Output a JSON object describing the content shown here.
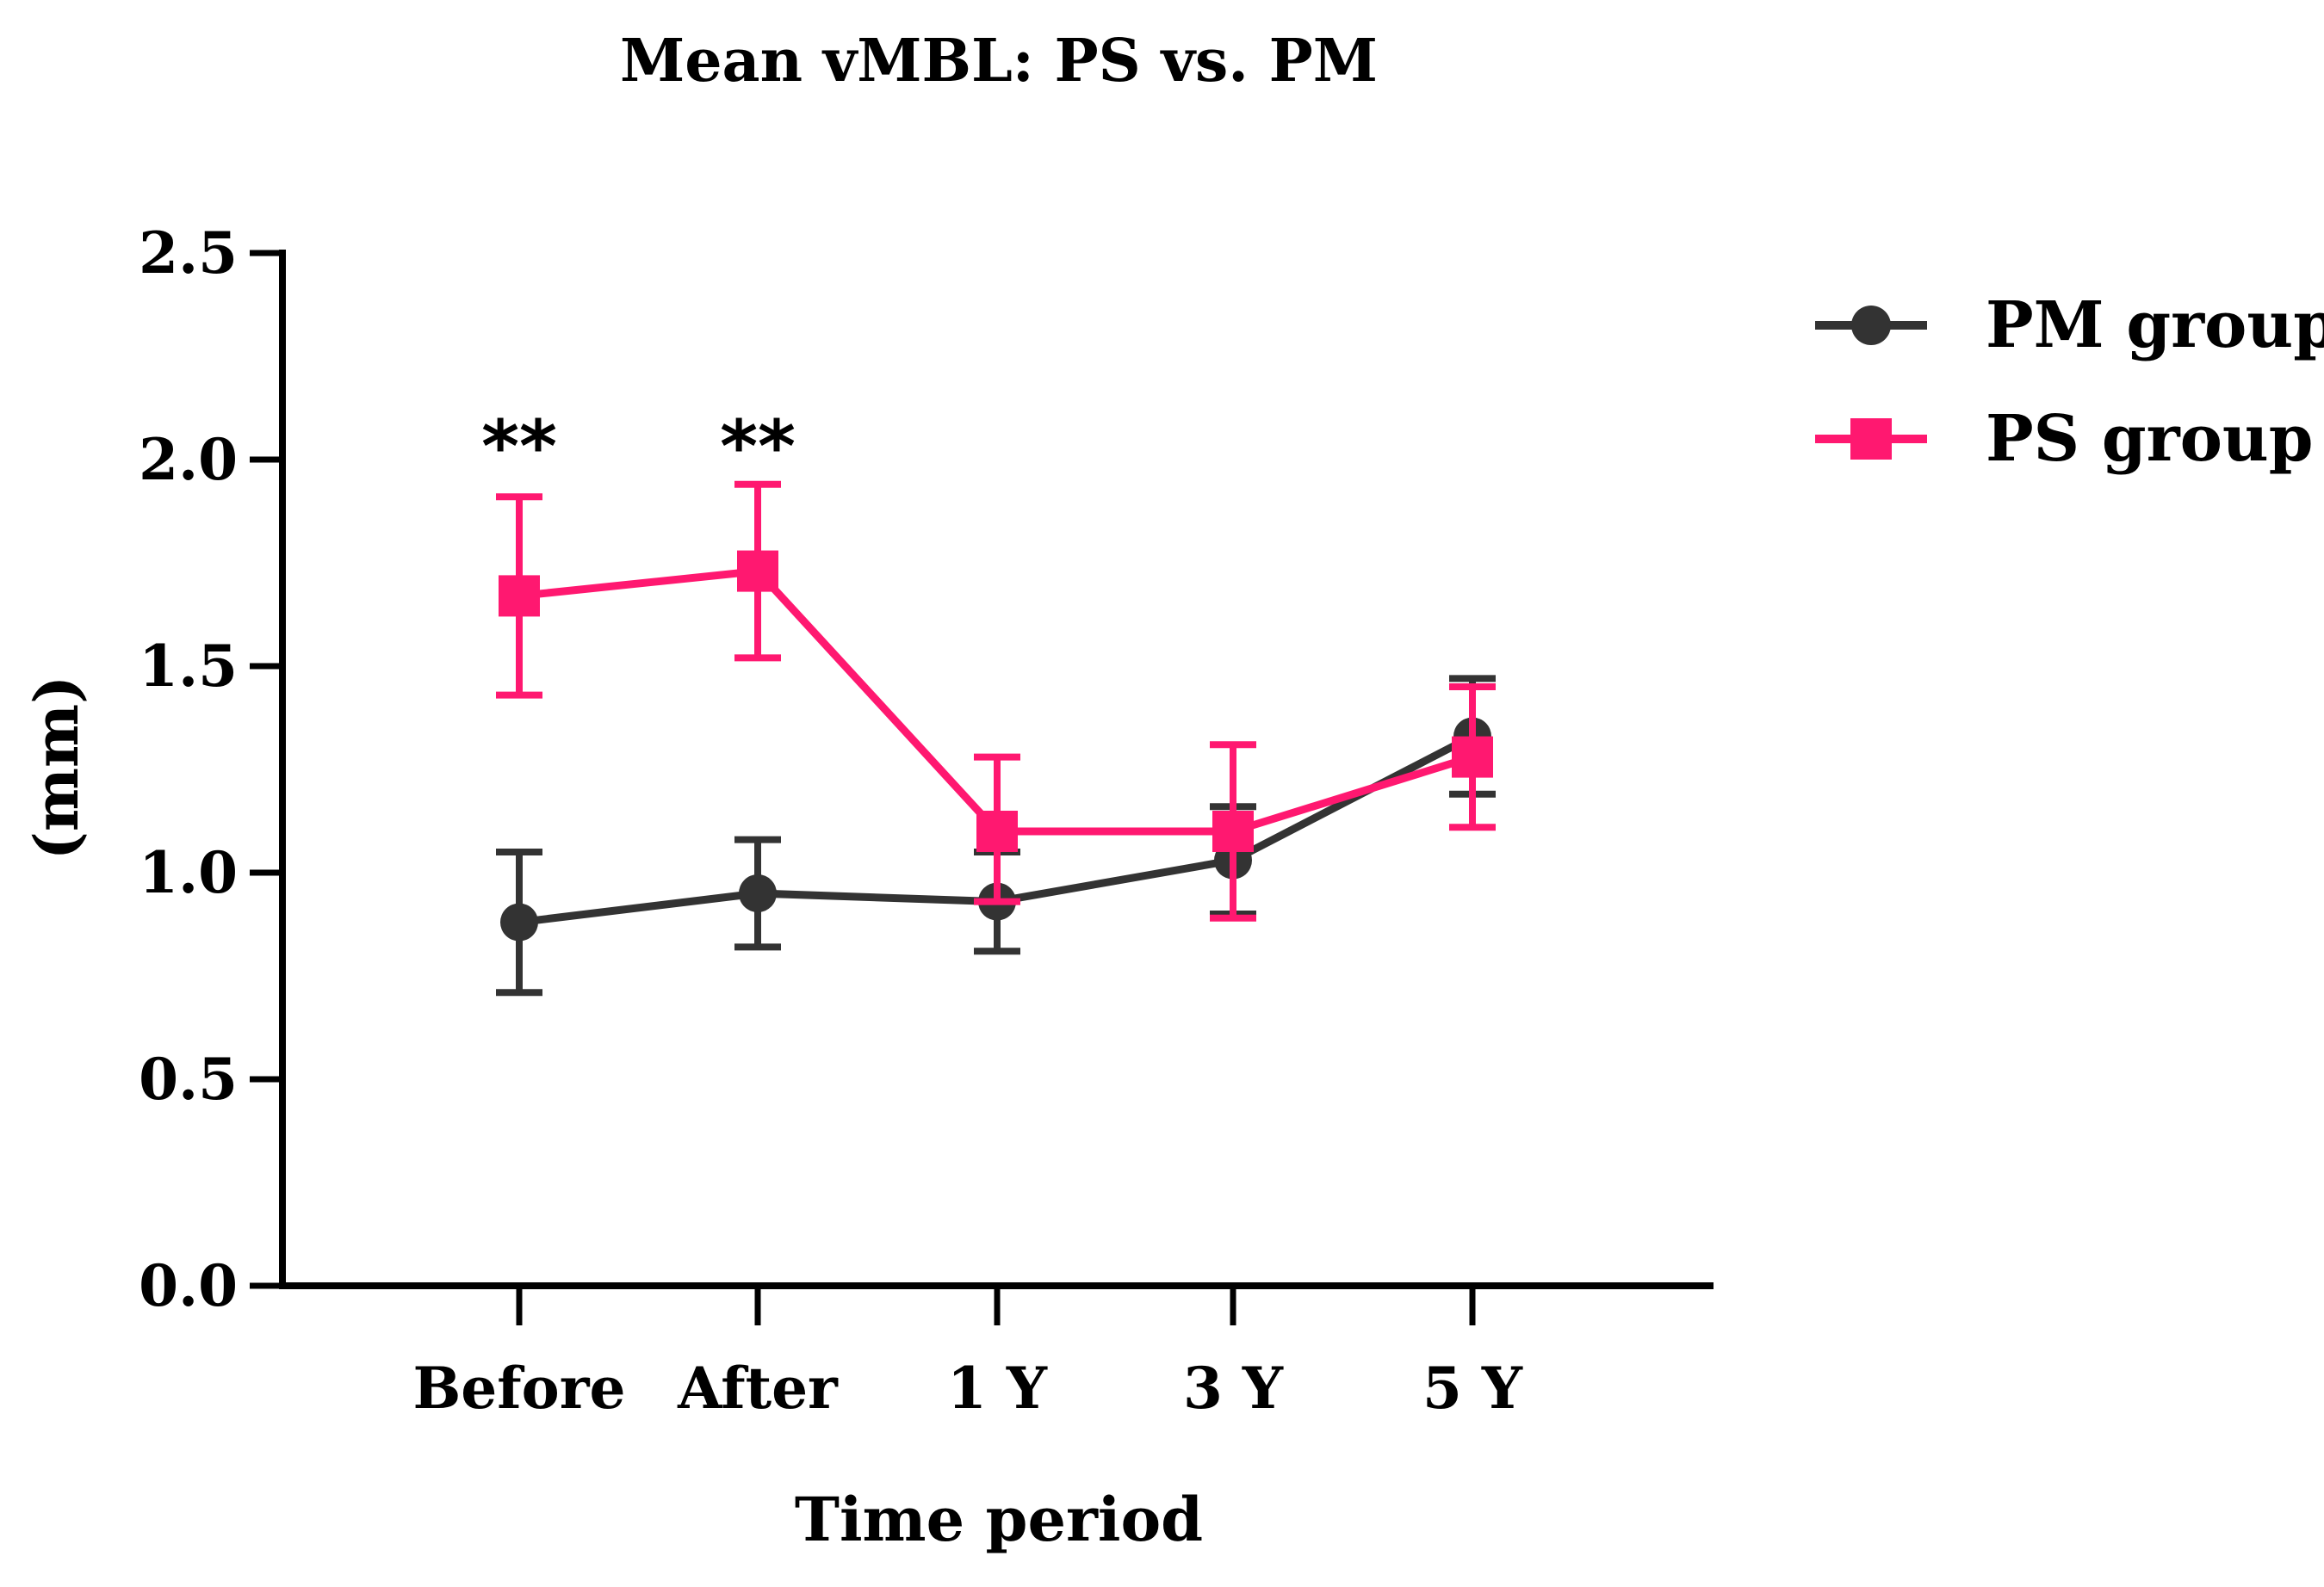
{
  "chart_data": {
    "type": "line",
    "title": "Mean vMBL: PS vs. PM",
    "xlabel": "Time period",
    "ylabel": "(mm)",
    "categories": [
      "Before",
      "After",
      "1 Y",
      "3 Y",
      "5 Y"
    ],
    "ylim": [
      0,
      2.5
    ],
    "yticks": [
      0.0,
      0.5,
      1.0,
      1.5,
      2.0,
      2.5
    ],
    "ytick_labels": [
      "0.0",
      "0.5",
      "1.0",
      "1.5",
      "2.0",
      "2.5"
    ],
    "grid": false,
    "legend_position": "right",
    "series": [
      {
        "name": "PM group",
        "marker": "circle",
        "color": "#333333",
        "values": [
          0.88,
          0.95,
          0.93,
          1.03,
          1.33
        ],
        "err_low": [
          0.71,
          0.82,
          0.81,
          0.9,
          1.19
        ],
        "err_high": [
          1.05,
          1.08,
          1.05,
          1.16,
          1.47
        ]
      },
      {
        "name": "PS group",
        "marker": "square",
        "color": "#ff1870",
        "values": [
          1.67,
          1.73,
          1.1,
          1.1,
          1.28
        ],
        "err_low": [
          1.43,
          1.52,
          0.93,
          0.89,
          1.11
        ],
        "err_high": [
          1.91,
          1.94,
          1.28,
          1.31,
          1.45
        ]
      }
    ],
    "annotations": [
      {
        "category": "Before",
        "text": "**"
      },
      {
        "category": "After",
        "text": "**"
      }
    ]
  }
}
